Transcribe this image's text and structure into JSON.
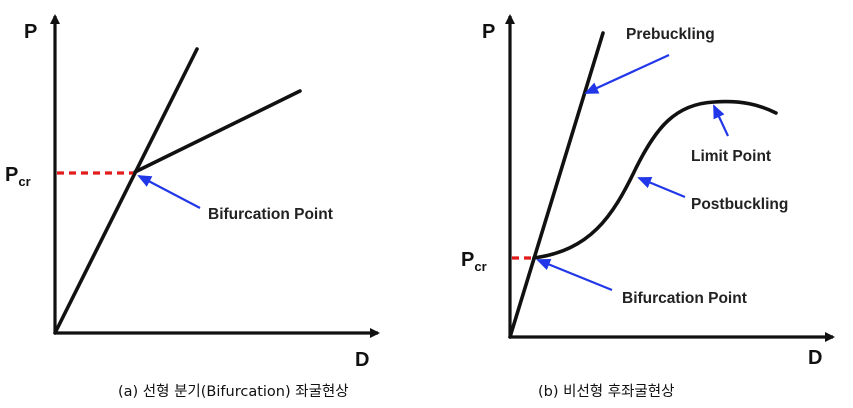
{
  "colors": {
    "ink": "#111111",
    "pointer": "#2238e8",
    "dashed": "#e21b1b"
  },
  "panel_a": {
    "y_axis_label": "P",
    "x_axis_label": "D",
    "pcr_main": "P",
    "pcr_sub": "cr",
    "bifurcation_label": "Bifurcation Point",
    "caption": "(a) 선형 분기(Bifurcation) 좌굴현상"
  },
  "panel_b": {
    "y_axis_label": "P",
    "x_axis_label": "D",
    "pcr_main": "P",
    "pcr_sub": "cr",
    "prebuckling_label": "Prebuckling",
    "limit_point_label": "Limit Point",
    "postbuckling_label": "Postbuckling",
    "bifurcation_label": "Bifurcation Point",
    "caption": "(b) 비선형 후좌굴현상"
  }
}
